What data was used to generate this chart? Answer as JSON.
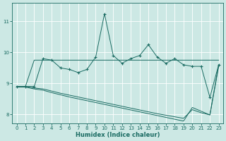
{
  "xlabel": "Humidex (Indice chaleur)",
  "ylabel": "",
  "bg_color": "#cce8e4",
  "grid_color": "#ffffff",
  "line_color": "#1a6b62",
  "xlim": [
    -0.5,
    23.5
  ],
  "ylim": [
    7.7,
    11.6
  ],
  "yticks": [
    8,
    9,
    10,
    11
  ],
  "xticks": [
    0,
    1,
    2,
    3,
    4,
    5,
    6,
    7,
    8,
    9,
    10,
    11,
    12,
    13,
    14,
    15,
    16,
    17,
    18,
    19,
    20,
    21,
    22,
    23
  ],
  "line1_x": [
    0,
    1,
    2,
    3,
    4,
    5,
    6,
    7,
    8,
    9,
    10,
    11,
    12,
    13,
    14,
    15,
    16,
    17,
    18,
    19,
    20,
    21,
    22,
    23
  ],
  "line1_y": [
    8.9,
    8.9,
    8.9,
    9.8,
    9.75,
    9.5,
    9.45,
    9.35,
    9.45,
    9.85,
    11.25,
    9.9,
    9.65,
    9.8,
    9.9,
    10.25,
    9.85,
    9.65,
    9.8,
    9.6,
    9.55,
    9.55,
    8.55,
    9.6
  ],
  "line2_x": [
    0,
    1,
    2,
    3,
    4,
    5,
    6,
    7,
    8,
    9,
    10,
    11,
    12,
    13,
    14,
    15,
    16,
    17,
    18,
    19,
    20,
    21,
    22,
    23
  ],
  "line2_y": [
    8.9,
    8.9,
    9.75,
    9.75,
    9.75,
    9.75,
    9.75,
    9.75,
    9.75,
    9.75,
    9.75,
    9.75,
    9.75,
    9.75,
    9.75,
    9.75,
    9.75,
    9.75,
    9.75,
    9.75,
    9.75,
    9.75,
    9.75,
    9.75
  ],
  "line3_x": [
    0,
    1,
    2,
    3,
    4,
    5,
    6,
    7,
    8,
    9,
    10,
    11,
    12,
    13,
    14,
    15,
    16,
    17,
    18,
    19,
    20,
    21,
    22,
    23
  ],
  "line3_y": [
    8.9,
    8.9,
    8.85,
    8.82,
    8.75,
    8.68,
    8.62,
    8.56,
    8.5,
    8.44,
    8.38,
    8.32,
    8.26,
    8.2,
    8.14,
    8.08,
    8.02,
    7.97,
    7.92,
    7.87,
    8.15,
    8.05,
    7.98,
    9.6
  ],
  "line4_x": [
    0,
    1,
    2,
    3,
    4,
    5,
    6,
    7,
    8,
    9,
    10,
    11,
    12,
    13,
    14,
    15,
    16,
    17,
    18,
    19,
    20,
    21,
    22,
    23
  ],
  "line4_y": [
    8.88,
    8.88,
    8.82,
    8.78,
    8.7,
    8.63,
    8.56,
    8.5,
    8.44,
    8.38,
    8.32,
    8.26,
    8.2,
    8.14,
    8.08,
    8.02,
    7.96,
    7.9,
    7.84,
    7.78,
    8.22,
    8.1,
    7.98,
    9.55
  ]
}
